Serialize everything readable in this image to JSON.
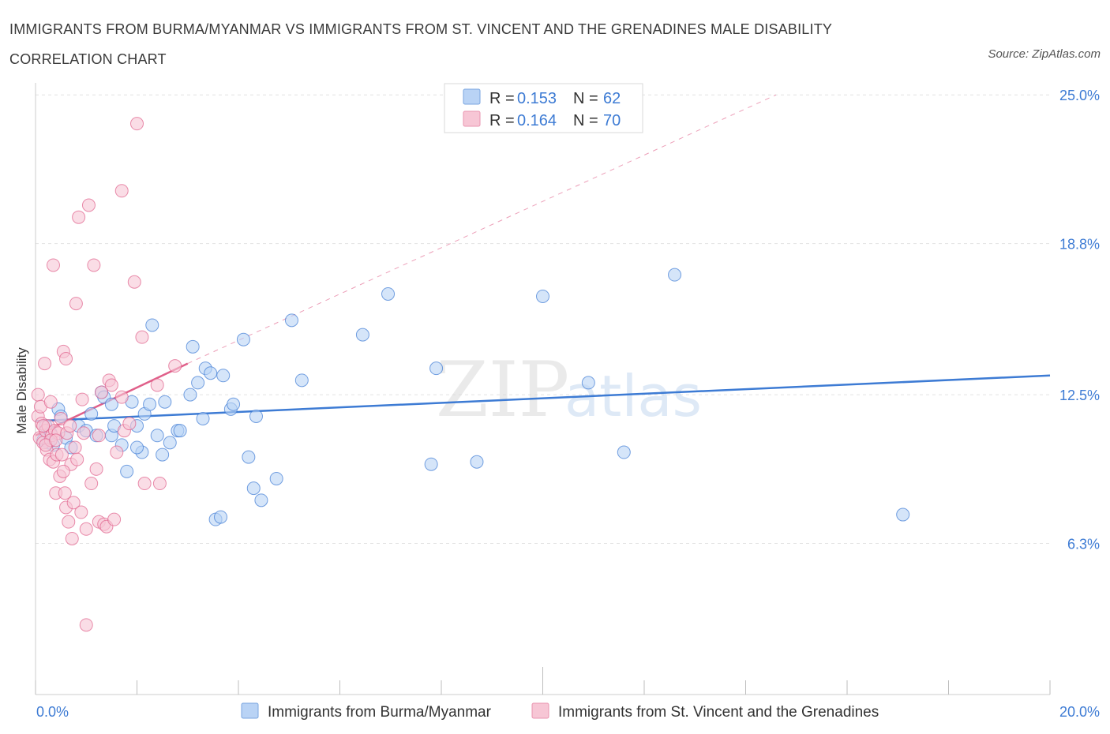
{
  "title": "IMMIGRANTS FROM BURMA/MYANMAR VS IMMIGRANTS FROM ST. VINCENT AND THE GRENADINES MALE DISABILITY CORRELATION CHART",
  "source": "Source: ZipAtlas.com",
  "watermark": {
    "zip": "ZIP",
    "atlas": "atlas"
  },
  "colors": {
    "blue": "#3d7bd4",
    "pink": "#e0608a",
    "blue_fill": "#b9d3f5",
    "pink_fill": "#f7c6d5"
  },
  "legend": {
    "r_label": "R =",
    "n_label": "N =",
    "entries": [
      {
        "r": "0.153",
        "n": "62",
        "color": "blue"
      },
      {
        "r": "0.164",
        "n": "70",
        "color": "pink"
      }
    ]
  },
  "chart_data": {
    "type": "scatter",
    "title": "IMMIGRANTS FROM BURMA/MYANMAR VS IMMIGRANTS FROM ST. VINCENT AND THE GRENADINES MALE DISABILITY CORRELATION CHART",
    "xlabel": "",
    "ylabel": "Male Disability",
    "xlim": [
      0,
      20
    ],
    "ylim": [
      0,
      25.5
    ],
    "x_tick_labels": [
      "0.0%",
      "20.0%"
    ],
    "y_tick_labels": [
      "6.3%",
      "12.5%",
      "18.8%",
      "25.0%"
    ],
    "y_ticks": [
      6.3,
      12.5,
      18.8,
      25.0
    ],
    "grid": true,
    "legend_position": "top-center",
    "series": [
      {
        "name": "Immigrants from Burma/Myanmar",
        "color": "blue",
        "trend": {
          "x": [
            0.0,
            20.0
          ],
          "y": [
            11.4,
            13.3
          ],
          "style": "solid"
        },
        "points": [
          [
            0.15,
            10.6
          ],
          [
            0.2,
            11.2
          ],
          [
            0.25,
            10.5
          ],
          [
            0.3,
            10.9
          ],
          [
            0.35,
            10.4
          ],
          [
            0.45,
            11.9
          ],
          [
            0.5,
            11.6
          ],
          [
            0.6,
            10.7
          ],
          [
            0.7,
            10.3
          ],
          [
            0.85,
            11.2
          ],
          [
            1.0,
            11.0
          ],
          [
            1.1,
            11.7
          ],
          [
            1.2,
            10.8
          ],
          [
            1.3,
            12.6
          ],
          [
            1.35,
            12.4
          ],
          [
            1.5,
            12.1
          ],
          [
            1.5,
            10.8
          ],
          [
            1.55,
            11.2
          ],
          [
            1.7,
            10.4
          ],
          [
            1.8,
            9.3
          ],
          [
            1.9,
            12.2
          ],
          [
            2.0,
            11.2
          ],
          [
            2.1,
            10.1
          ],
          [
            2.15,
            11.7
          ],
          [
            2.25,
            12.1
          ],
          [
            2.3,
            15.4
          ],
          [
            2.4,
            10.8
          ],
          [
            2.5,
            10.0
          ],
          [
            2.55,
            12.2
          ],
          [
            2.65,
            10.5
          ],
          [
            2.8,
            11.0
          ],
          [
            2.85,
            11.0
          ],
          [
            3.05,
            12.5
          ],
          [
            3.1,
            14.5
          ],
          [
            3.2,
            13.0
          ],
          [
            3.3,
            11.5
          ],
          [
            3.35,
            13.6
          ],
          [
            3.45,
            13.4
          ],
          [
            3.55,
            7.3
          ],
          [
            3.65,
            7.4
          ],
          [
            3.7,
            13.3
          ],
          [
            3.85,
            11.9
          ],
          [
            3.9,
            12.1
          ],
          [
            4.1,
            14.8
          ],
          [
            4.2,
            9.9
          ],
          [
            4.3,
            8.6
          ],
          [
            4.35,
            11.6
          ],
          [
            4.45,
            8.1
          ],
          [
            4.75,
            9.0
          ],
          [
            5.05,
            15.6
          ],
          [
            5.25,
            13.1
          ],
          [
            6.45,
            15.0
          ],
          [
            6.95,
            16.7
          ],
          [
            7.8,
            9.6
          ],
          [
            7.9,
            13.6
          ],
          [
            8.7,
            9.7
          ],
          [
            10.0,
            16.6
          ],
          [
            10.9,
            13.0
          ],
          [
            11.6,
            10.1
          ],
          [
            12.6,
            17.5
          ],
          [
            17.1,
            7.5
          ],
          [
            2.0,
            10.3
          ]
        ]
      },
      {
        "name": "Immigrants from St. Vincent and the Grenadines",
        "color": "pink",
        "trend": {
          "x": [
            0.0,
            3.0
          ],
          "y": [
            10.8,
            13.8
          ],
          "style": "solid",
          "extended_to": [
            14.6,
            25.0
          ],
          "extended_style": "dashed"
        },
        "points": [
          [
            0.05,
            12.5
          ],
          [
            0.05,
            11.6
          ],
          [
            0.08,
            10.7
          ],
          [
            0.1,
            12.0
          ],
          [
            0.12,
            11.3
          ],
          [
            0.15,
            10.5
          ],
          [
            0.18,
            13.8
          ],
          [
            0.2,
            11.0
          ],
          [
            0.22,
            10.2
          ],
          [
            0.25,
            11.2
          ],
          [
            0.28,
            9.8
          ],
          [
            0.3,
            12.2
          ],
          [
            0.32,
            10.8
          ],
          [
            0.35,
            9.7
          ],
          [
            0.38,
            11.0
          ],
          [
            0.4,
            8.4
          ],
          [
            0.42,
            10.0
          ],
          [
            0.45,
            10.9
          ],
          [
            0.48,
            9.1
          ],
          [
            0.5,
            11.5
          ],
          [
            0.52,
            10.0
          ],
          [
            0.55,
            14.3
          ],
          [
            0.58,
            8.4
          ],
          [
            0.6,
            7.8
          ],
          [
            0.6,
            14.0
          ],
          [
            0.62,
            10.9
          ],
          [
            0.65,
            7.2
          ],
          [
            0.68,
            11.2
          ],
          [
            0.7,
            9.6
          ],
          [
            0.72,
            6.5
          ],
          [
            0.75,
            8.0
          ],
          [
            0.78,
            10.3
          ],
          [
            0.8,
            16.3
          ],
          [
            0.82,
            9.8
          ],
          [
            0.85,
            19.9
          ],
          [
            0.9,
            7.6
          ],
          [
            0.92,
            12.3
          ],
          [
            0.95,
            10.9
          ],
          [
            0.35,
            17.9
          ],
          [
            1.0,
            6.9
          ],
          [
            1.05,
            20.4
          ],
          [
            1.1,
            8.8
          ],
          [
            1.15,
            17.9
          ],
          [
            1.2,
            9.4
          ],
          [
            1.25,
            10.8
          ],
          [
            1.25,
            7.2
          ],
          [
            1.35,
            7.1
          ],
          [
            1.4,
            7.0
          ],
          [
            1.45,
            13.1
          ],
          [
            1.5,
            12.9
          ],
          [
            1.55,
            7.3
          ],
          [
            1.6,
            10.1
          ],
          [
            1.7,
            21.0
          ],
          [
            1.75,
            11.0
          ],
          [
            1.85,
            11.3
          ],
          [
            1.95,
            17.2
          ],
          [
            2.0,
            23.8
          ],
          [
            2.1,
            14.9
          ],
          [
            2.15,
            8.8
          ],
          [
            2.4,
            12.9
          ],
          [
            2.45,
            8.8
          ],
          [
            2.75,
            13.7
          ],
          [
            1.0,
            2.9
          ],
          [
            0.15,
            11.2
          ],
          [
            0.3,
            10.6
          ],
          [
            0.2,
            10.4
          ],
          [
            0.55,
            9.3
          ],
          [
            0.4,
            10.6
          ],
          [
            1.7,
            12.4
          ],
          [
            1.3,
            12.6
          ]
        ]
      }
    ]
  },
  "bottom_legend": [
    {
      "label": "Immigrants from Burma/Myanmar",
      "color": "blue"
    },
    {
      "label": "Immigrants from St. Vincent and the Grenadines",
      "color": "pink"
    }
  ]
}
